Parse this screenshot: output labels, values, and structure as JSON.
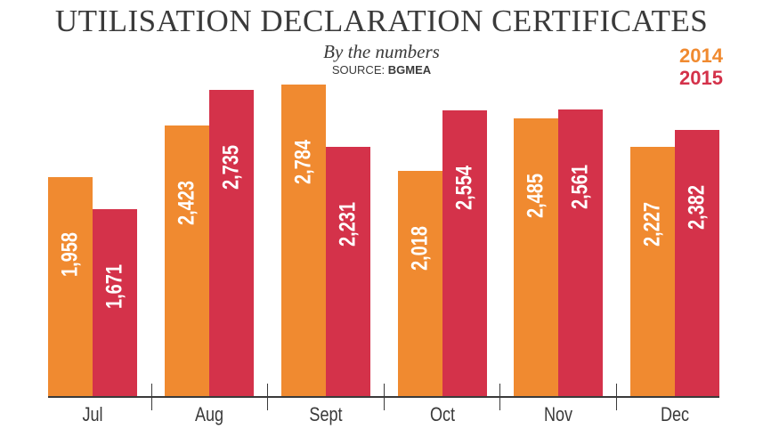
{
  "header": {
    "title": "UTILISATION DECLARATION CERTIFICATES",
    "subtitle": "By the numbers",
    "source_label": "SOURCE:",
    "source_name": "BGMEA"
  },
  "legend": [
    {
      "label": "2014",
      "color": "#f08a30"
    },
    {
      "label": "2015",
      "color": "#d4324a"
    }
  ],
  "chart_data": {
    "type": "bar",
    "title": "UTILISATION DECLARATION CERTIFICATES",
    "subtitle": "By the numbers",
    "source": "SOURCE: BGMEA",
    "xlabel": "",
    "ylabel": "",
    "categories": [
      "Jul",
      "Aug",
      "Sept",
      "Oct",
      "Nov",
      "Dec"
    ],
    "series": [
      {
        "name": "2014",
        "color": "#f08a30",
        "values": [
          1958,
          2423,
          2784,
          2018,
          2485,
          2227
        ],
        "labels": [
          "1,958",
          "2,423",
          "2,784",
          "2,018",
          "2,485",
          "2,227"
        ]
      },
      {
        "name": "2015",
        "color": "#d4324a",
        "values": [
          1671,
          2735,
          2231,
          2554,
          2561,
          2382
        ],
        "labels": [
          "1,671",
          "2,735",
          "2,231",
          "2,554",
          "2,561",
          "2,382"
        ]
      }
    ],
    "ylim": [
      0,
      2800
    ],
    "grid": false,
    "legend_position": "top-right",
    "data_labels": "inside bars, rotated vertical"
  }
}
